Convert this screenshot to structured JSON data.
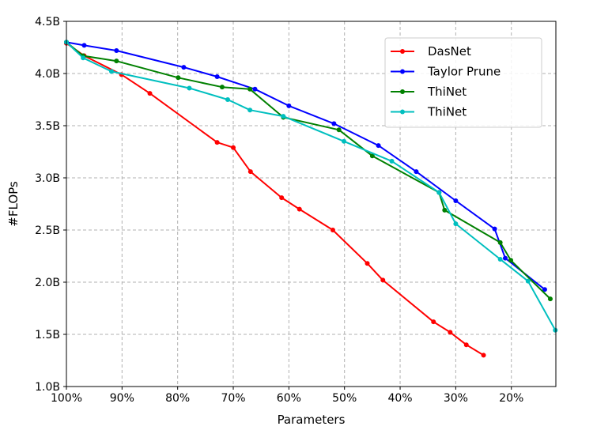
{
  "chart_data": {
    "type": "line",
    "xlabel": "Parameters",
    "ylabel": "#FLOPs",
    "x_unit": "percent of parameters",
    "x_reversed": true,
    "xlim": [
      100,
      12
    ],
    "ylim": [
      1.0,
      4.5
    ],
    "x_ticks": [
      100,
      90,
      80,
      70,
      60,
      50,
      40,
      30,
      20
    ],
    "x_tick_labels": [
      "100%",
      "90%",
      "80%",
      "70%",
      "60%",
      "50%",
      "40%",
      "30%",
      "20%"
    ],
    "y_ticks": [
      1.0,
      1.5,
      2.0,
      2.5,
      3.0,
      3.5,
      4.0,
      4.5
    ],
    "y_tick_labels": [
      "1.0B",
      "1.5B",
      "2.0B",
      "2.5B",
      "3.0B",
      "3.5B",
      "4.0B",
      "4.5B"
    ],
    "grid": true,
    "legend_position": "top-right",
    "series": [
      {
        "name": "DasNet",
        "color": "#ff0000",
        "x": [
          100,
          96.8,
          90.1,
          85.0,
          72.9,
          70.0,
          66.9,
          61.3,
          58.1,
          52.1,
          45.9,
          43.1,
          34.0,
          31.0,
          28.1,
          25.0
        ],
        "y": [
          4.29,
          4.17,
          3.99,
          3.81,
          3.34,
          3.29,
          3.06,
          2.81,
          2.7,
          2.5,
          2.18,
          2.02,
          1.62,
          1.52,
          1.4,
          1.3
        ]
      },
      {
        "name": "Taylor Prune",
        "color": "#0000ff",
        "x": [
          100,
          96.8,
          91.0,
          78.9,
          72.9,
          66.1,
          60.0,
          51.9,
          43.9,
          37.1,
          30.0,
          23.0,
          21.1,
          14.0
        ],
        "y": [
          4.3,
          4.27,
          4.22,
          4.06,
          3.97,
          3.85,
          3.69,
          3.52,
          3.31,
          3.06,
          2.78,
          2.51,
          2.23,
          1.93
        ]
      },
      {
        "name": "ThiNet",
        "color": "#008000",
        "x": [
          100,
          97.0,
          91.0,
          79.9,
          72.0,
          67.0,
          61.0,
          51.0,
          45.0,
          33.0,
          32.0,
          22.0,
          20.1,
          13.0
        ],
        "y": [
          4.3,
          4.17,
          4.12,
          3.96,
          3.87,
          3.85,
          3.58,
          3.46,
          3.21,
          2.86,
          2.69,
          2.38,
          2.21,
          1.84
        ]
      },
      {
        "name": "ThiNet",
        "color": "#00bfbf",
        "x": [
          100,
          97.0,
          91.9,
          77.9,
          71.0,
          67.0,
          61.0,
          50.1,
          41.5,
          33.0,
          30.0,
          22.0,
          17.0,
          12.1
        ],
        "y": [
          4.3,
          4.15,
          4.02,
          3.86,
          3.75,
          3.65,
          3.59,
          3.35,
          3.16,
          2.86,
          2.56,
          2.22,
          2.01,
          1.54
        ]
      }
    ]
  }
}
